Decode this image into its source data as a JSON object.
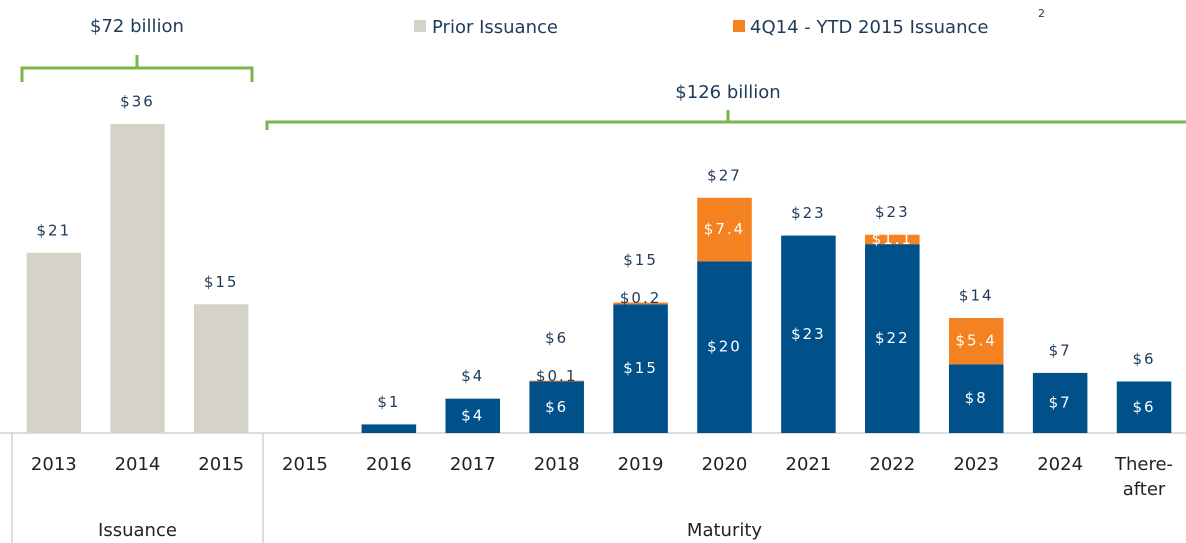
{
  "chart_data": [
    {
      "type": "bar",
      "group_label": "Issuance",
      "annotation": "$72 billion",
      "categories": [
        "2013",
        "2014",
        "2015"
      ],
      "series": [
        {
          "name": "Prior Issuance",
          "color": "#d5d3c7",
          "values": [
            21,
            36,
            15
          ],
          "value_labels": [
            "$21",
            "$36",
            "$15"
          ]
        }
      ]
    },
    {
      "type": "stacked_bar",
      "group_label": "Maturity",
      "annotation": "$126 billion",
      "categories": [
        "2015",
        "2016",
        "2017",
        "2018",
        "2019",
        "2020",
        "2021",
        "2022",
        "2023",
        "2024",
        "There-\nafter"
      ],
      "series": [
        {
          "color": "#00508a",
          "values": [
            null,
            1,
            4,
            6,
            15,
            20,
            23,
            22,
            8,
            7,
            6
          ],
          "value_labels": [
            null,
            null,
            "$4",
            "$6",
            "$15",
            "$20",
            "$23",
            "$22",
            "$8",
            "$7",
            "$6"
          ]
        },
        {
          "name": "4Q14 - YTD 2015 Issuance",
          "footnote": "2",
          "color": "#f58220",
          "values": [
            null,
            null,
            null,
            0.1,
            0.2,
            7.4,
            null,
            1.1,
            5.4,
            null,
            null
          ],
          "value_labels": [
            null,
            null,
            null,
            "$0.1",
            "$0.2",
            "$7.4",
            null,
            "$1.1",
            "$5.4",
            null,
            null
          ]
        }
      ],
      "total_labels": [
        null,
        "$1",
        "$4",
        "$6",
        "$15",
        "$27",
        "$23",
        "$23",
        "$14",
        "$7",
        "$6"
      ]
    }
  ]
}
